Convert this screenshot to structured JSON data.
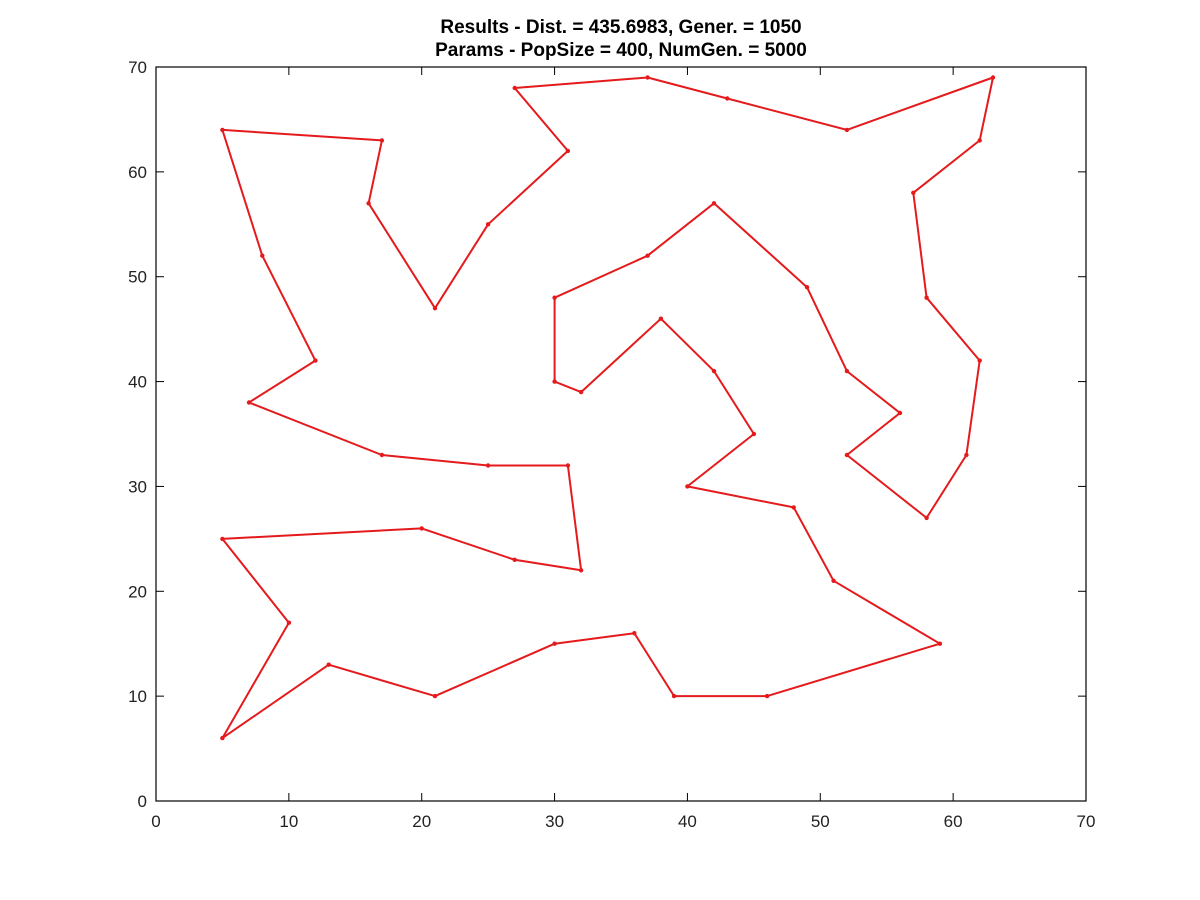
{
  "chart_data": {
    "type": "line",
    "title": "Results - Dist. = 435.6983, Gener. = 1050",
    "subtitle": "Params - PopSize = 400, NumGen. = 5000",
    "xlabel": "",
    "ylabel": "",
    "xlim": [
      0,
      70
    ],
    "ylim": [
      0,
      70
    ],
    "xticks": [
      0,
      10,
      20,
      30,
      40,
      50,
      60,
      70
    ],
    "yticks": [
      0,
      10,
      20,
      30,
      40,
      50,
      60,
      70
    ],
    "xtick_labels": [
      "0",
      "10",
      "20",
      "30",
      "40",
      "50",
      "60",
      "70"
    ],
    "ytick_labels": [
      "0",
      "10",
      "20",
      "30",
      "40",
      "50",
      "60",
      "70"
    ],
    "grid": false,
    "closed": true,
    "color": "#e41a1c",
    "series": [
      {
        "points": [
          [
            5,
            64
          ],
          [
            17,
            63
          ],
          [
            16,
            57
          ],
          [
            21,
            47
          ],
          [
            25,
            55
          ],
          [
            31,
            62
          ],
          [
            27,
            68
          ],
          [
            37,
            69
          ],
          [
            43,
            67
          ],
          [
            52,
            64
          ],
          [
            63,
            69
          ],
          [
            62,
            63
          ],
          [
            57,
            58
          ],
          [
            58,
            48
          ],
          [
            62,
            42
          ],
          [
            61,
            33
          ],
          [
            58,
            27
          ],
          [
            52,
            33
          ],
          [
            56,
            37
          ],
          [
            52,
            41
          ],
          [
            49,
            49
          ],
          [
            42,
            57
          ],
          [
            37,
            52
          ],
          [
            30,
            48
          ],
          [
            30,
            40
          ],
          [
            32,
            39
          ],
          [
            38,
            46
          ],
          [
            42,
            41
          ],
          [
            45,
            35
          ],
          [
            40,
            30
          ],
          [
            48,
            28
          ],
          [
            51,
            21
          ],
          [
            59,
            15
          ],
          [
            46,
            10
          ],
          [
            39,
            10
          ],
          [
            36,
            16
          ],
          [
            30,
            15
          ],
          [
            21,
            10
          ],
          [
            13,
            13
          ],
          [
            5,
            6
          ],
          [
            10,
            17
          ],
          [
            5,
            25
          ],
          [
            20,
            26
          ],
          [
            27,
            23
          ],
          [
            32,
            22
          ],
          [
            31,
            32
          ],
          [
            25,
            32
          ],
          [
            17,
            33
          ],
          [
            7,
            38
          ],
          [
            12,
            42
          ],
          [
            8,
            52
          ]
        ]
      }
    ]
  }
}
